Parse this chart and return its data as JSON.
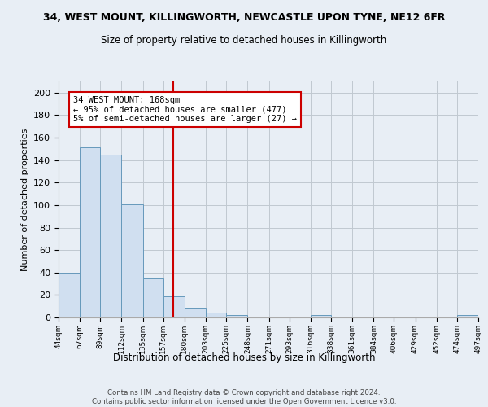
{
  "title1": "34, WEST MOUNT, KILLINGWORTH, NEWCASTLE UPON TYNE, NE12 6FR",
  "title2": "Size of property relative to detached houses in Killingworth",
  "xlabel": "Distribution of detached houses by size in Killingworth",
  "ylabel": "Number of detached properties",
  "bar_edges": [
    44,
    67,
    89,
    112,
    135,
    157,
    180,
    203,
    225,
    248,
    271,
    293,
    316,
    338,
    361,
    384,
    406,
    429,
    452,
    474,
    497
  ],
  "bar_heights": [
    40,
    151,
    145,
    101,
    35,
    19,
    9,
    4,
    2,
    0,
    0,
    0,
    2,
    0,
    0,
    0,
    0,
    0,
    0,
    2
  ],
  "bar_color": "#d0dff0",
  "bar_edge_color": "#6699bb",
  "vline_x": 168,
  "vline_color": "#cc0000",
  "annotation_text": "34 WEST MOUNT: 168sqm\n← 95% of detached houses are smaller (477)\n5% of semi-detached houses are larger (27) →",
  "annotation_box_color": "white",
  "annotation_box_edge_color": "#cc0000",
  "ylim": [
    0,
    210
  ],
  "yticks": [
    0,
    20,
    40,
    60,
    80,
    100,
    120,
    140,
    160,
    180,
    200
  ],
  "tick_labels": [
    "44sqm",
    "67sqm",
    "89sqm",
    "112sqm",
    "135sqm",
    "157sqm",
    "180sqm",
    "203sqm",
    "225sqm",
    "248sqm",
    "271sqm",
    "293sqm",
    "316sqm",
    "338sqm",
    "361sqm",
    "384sqm",
    "406sqm",
    "429sqm",
    "452sqm",
    "474sqm",
    "497sqm"
  ],
  "footer": "Contains HM Land Registry data © Crown copyright and database right 2024.\nContains public sector information licensed under the Open Government Licence v3.0.",
  "bg_color": "#e8eef5",
  "plot_bg_color": "#e8eef5"
}
